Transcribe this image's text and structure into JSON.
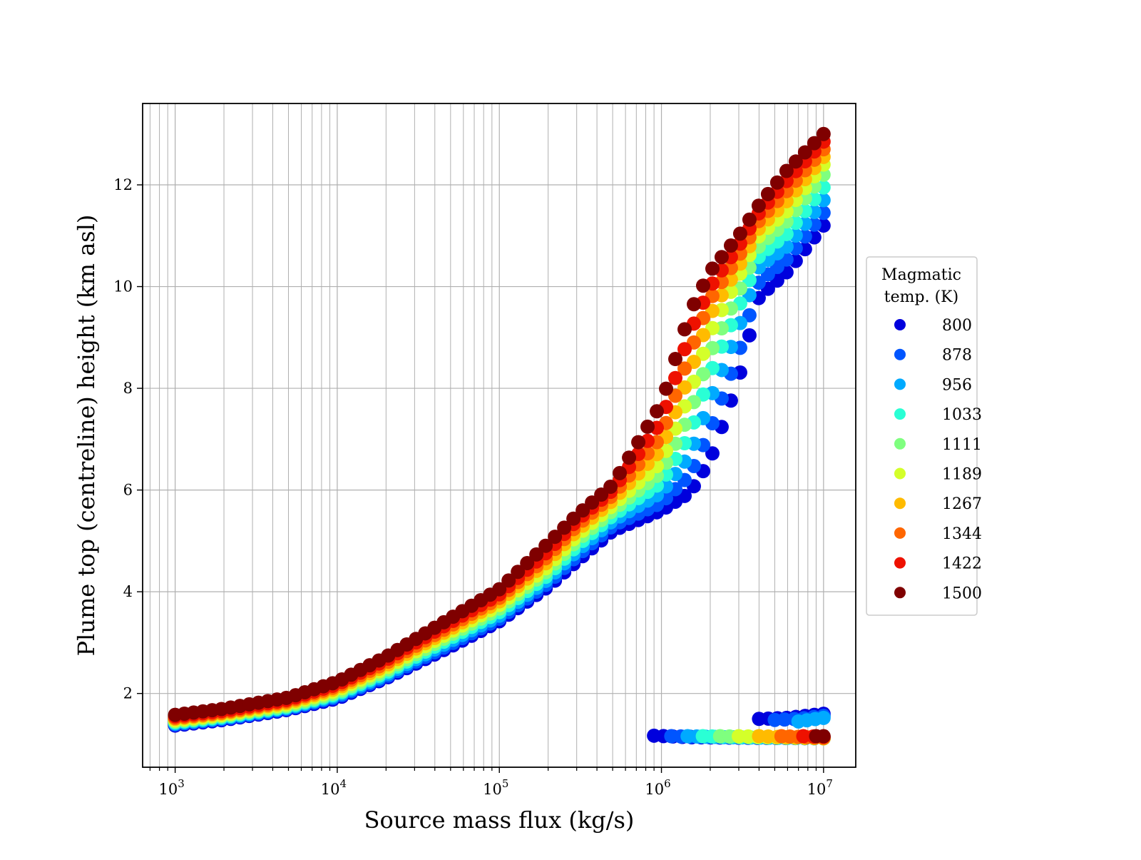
{
  "chart_data": {
    "type": "scatter",
    "x_scale": "log",
    "xlim": [
      630,
      15800000
    ],
    "ylim": [
      0.55,
      13.6
    ],
    "x_ticks": [
      {
        "value": 1000,
        "base": "10",
        "exp": "3"
      },
      {
        "value": 10000,
        "base": "10",
        "exp": "4"
      },
      {
        "value": 100000,
        "base": "10",
        "exp": "5"
      },
      {
        "value": 1000000,
        "base": "10",
        "exp": "6"
      },
      {
        "value": 10000000,
        "base": "10",
        "exp": "7"
      }
    ],
    "y_ticks": [
      2,
      4,
      6,
      8,
      10,
      12
    ],
    "xlabel": "Source mass flux (kg/s)",
    "ylabel": "Plume top (centreline) height (km asl)",
    "grid": true,
    "legend": {
      "title_line1": "Magmatic",
      "title_line2": "temp. (K)",
      "placement": "right, outside plot"
    },
    "x_range_points": [
      1000,
      10000000
    ],
    "points_per_series": 71,
    "series": [
      {
        "name": "800",
        "color": "#0000dd",
        "curve": [
          [
            1000,
            1.37
          ],
          [
            2000,
            1.48
          ],
          [
            5000,
            1.68
          ],
          [
            10000,
            1.9
          ],
          [
            20000,
            2.3
          ],
          [
            50000,
            2.92
          ],
          [
            100000,
            3.42
          ],
          [
            200000,
            4.1
          ],
          [
            300000,
            4.6
          ],
          [
            500000,
            5.2
          ],
          [
            1000000,
            5.6
          ],
          [
            1500000,
            5.95
          ],
          [
            2000000,
            6.6
          ],
          [
            3000000,
            8.2
          ],
          [
            4000000,
            9.8
          ],
          [
            6000000,
            10.3
          ],
          [
            10000000,
            11.2
          ]
        ],
        "lower_branch": [
          [
            900000,
            1.17
          ],
          [
            1500000,
            1.14
          ],
          [
            3000000,
            1.13
          ],
          [
            10000000,
            1.12
          ]
        ],
        "upper_branch": [
          [
            4000000,
            1.5
          ],
          [
            6000000,
            1.52
          ],
          [
            10000000,
            1.6
          ]
        ]
      },
      {
        "name": "878",
        "color": "#0055ff",
        "curve": [
          [
            1000,
            1.39
          ],
          [
            2000,
            1.5
          ],
          [
            5000,
            1.7
          ],
          [
            10000,
            1.93
          ],
          [
            20000,
            2.33
          ],
          [
            50000,
            2.97
          ],
          [
            100000,
            3.47
          ],
          [
            200000,
            4.17
          ],
          [
            300000,
            4.7
          ],
          [
            500000,
            5.3
          ],
          [
            1000000,
            5.75
          ],
          [
            1500000,
            6.3
          ],
          [
            2000000,
            7.2
          ],
          [
            3000000,
            8.7
          ],
          [
            4000000,
            10.1
          ],
          [
            6000000,
            10.55
          ],
          [
            10000000,
            11.45
          ]
        ],
        "lower_branch": [
          [
            1150000,
            1.16
          ],
          [
            2000000,
            1.14
          ],
          [
            10000000,
            1.12
          ]
        ],
        "upper_branch": [
          [
            5000000,
            1.48
          ],
          [
            7000000,
            1.5
          ],
          [
            10000000,
            1.56
          ]
        ]
      },
      {
        "name": "956",
        "color": "#00aaff",
        "curve": [
          [
            1000,
            1.41
          ],
          [
            2000,
            1.52
          ],
          [
            5000,
            1.72
          ],
          [
            10000,
            1.96
          ],
          [
            20000,
            2.37
          ],
          [
            50000,
            3.03
          ],
          [
            100000,
            3.53
          ],
          [
            200000,
            4.25
          ],
          [
            300000,
            4.8
          ],
          [
            500000,
            5.4
          ],
          [
            1000000,
            5.95
          ],
          [
            1500000,
            6.7
          ],
          [
            2000000,
            7.8
          ],
          [
            3000000,
            9.2
          ],
          [
            4000000,
            10.4
          ],
          [
            6000000,
            10.8
          ],
          [
            10000000,
            11.7
          ]
        ],
        "lower_branch": [
          [
            1450000,
            1.16
          ],
          [
            2500000,
            1.14
          ],
          [
            10000000,
            1.12
          ]
        ],
        "upper_branch": [
          [
            7000000,
            1.45
          ],
          [
            10000000,
            1.52
          ]
        ]
      },
      {
        "name": "1033",
        "color": "#2affd5",
        "curve": [
          [
            1000,
            1.43
          ],
          [
            2000,
            1.54
          ],
          [
            5000,
            1.74
          ],
          [
            10000,
            1.99
          ],
          [
            20000,
            2.41
          ],
          [
            50000,
            3.09
          ],
          [
            100000,
            3.6
          ],
          [
            200000,
            4.33
          ],
          [
            300000,
            4.9
          ],
          [
            500000,
            5.5
          ],
          [
            1000000,
            6.15
          ],
          [
            1500000,
            7.1
          ],
          [
            2000000,
            8.3
          ],
          [
            3000000,
            9.6
          ],
          [
            4000000,
            10.6
          ],
          [
            6000000,
            11.05
          ],
          [
            10000000,
            11.95
          ]
        ],
        "lower_branch": [
          [
            1800000,
            1.16
          ],
          [
            3000000,
            1.14
          ],
          [
            10000000,
            1.12
          ]
        ]
      },
      {
        "name": "1111",
        "color": "#7fff7f",
        "curve": [
          [
            1000,
            1.45
          ],
          [
            2000,
            1.56
          ],
          [
            5000,
            1.76
          ],
          [
            10000,
            2.02
          ],
          [
            20000,
            2.45
          ],
          [
            50000,
            3.15
          ],
          [
            100000,
            3.67
          ],
          [
            200000,
            4.42
          ],
          [
            300000,
            5.0
          ],
          [
            500000,
            5.6
          ],
          [
            1000000,
            6.35
          ],
          [
            1500000,
            7.5
          ],
          [
            2000000,
            8.7
          ],
          [
            3000000,
            9.9
          ],
          [
            4000000,
            10.8
          ],
          [
            6000000,
            11.3
          ],
          [
            10000000,
            12.2
          ]
        ],
        "lower_branch": [
          [
            2300000,
            1.16
          ],
          [
            4000000,
            1.14
          ],
          [
            10000000,
            1.12
          ]
        ]
      },
      {
        "name": "1189",
        "color": "#d4ff2a",
        "curve": [
          [
            1000,
            1.47
          ],
          [
            2000,
            1.58
          ],
          [
            5000,
            1.79
          ],
          [
            10000,
            2.06
          ],
          [
            20000,
            2.5
          ],
          [
            50000,
            3.21
          ],
          [
            100000,
            3.74
          ],
          [
            200000,
            4.5
          ],
          [
            300000,
            5.1
          ],
          [
            500000,
            5.7
          ],
          [
            1000000,
            6.55
          ],
          [
            1500000,
            7.9
          ],
          [
            2000000,
            9.1
          ],
          [
            3000000,
            10.2
          ],
          [
            4000000,
            11.0
          ],
          [
            6000000,
            11.5
          ],
          [
            10000000,
            12.4
          ]
        ],
        "lower_branch": [
          [
            3000000,
            1.16
          ],
          [
            5000000,
            1.14
          ],
          [
            10000000,
            1.12
          ]
        ]
      },
      {
        "name": "1267",
        "color": "#ffbb00",
        "curve": [
          [
            1000,
            1.5
          ],
          [
            2000,
            1.61
          ],
          [
            5000,
            1.82
          ],
          [
            10000,
            2.1
          ],
          [
            20000,
            2.55
          ],
          [
            50000,
            3.27
          ],
          [
            100000,
            3.81
          ],
          [
            200000,
            4.6
          ],
          [
            300000,
            5.2
          ],
          [
            500000,
            5.8
          ],
          [
            1000000,
            6.8
          ],
          [
            1500000,
            8.3
          ],
          [
            2000000,
            9.45
          ],
          [
            3000000,
            10.4
          ],
          [
            4000000,
            11.15
          ],
          [
            6000000,
            11.7
          ],
          [
            10000000,
            12.55
          ]
        ],
        "lower_branch": [
          [
            4000000,
            1.16
          ],
          [
            6000000,
            1.14
          ],
          [
            10000000,
            1.12
          ]
        ]
      },
      {
        "name": "1344",
        "color": "#ff6600",
        "curve": [
          [
            1000,
            1.52
          ],
          [
            2000,
            1.63
          ],
          [
            5000,
            1.85
          ],
          [
            10000,
            2.14
          ],
          [
            20000,
            2.6
          ],
          [
            50000,
            3.33
          ],
          [
            100000,
            3.88
          ],
          [
            200000,
            4.7
          ],
          [
            300000,
            5.3
          ],
          [
            500000,
            5.9
          ],
          [
            1000000,
            7.05
          ],
          [
            1500000,
            8.7
          ],
          [
            2000000,
            9.75
          ],
          [
            3000000,
            10.6
          ],
          [
            4000000,
            11.3
          ],
          [
            6000000,
            11.9
          ],
          [
            10000000,
            12.7
          ]
        ],
        "lower_branch": [
          [
            5500000,
            1.16
          ],
          [
            8000000,
            1.14
          ],
          [
            10000000,
            1.13
          ]
        ]
      },
      {
        "name": "1422",
        "color": "#ee1100",
        "curve": [
          [
            1000,
            1.55
          ],
          [
            2000,
            1.66
          ],
          [
            5000,
            1.88
          ],
          [
            10000,
            2.18
          ],
          [
            20000,
            2.66
          ],
          [
            50000,
            3.4
          ],
          [
            100000,
            3.95
          ],
          [
            200000,
            4.8
          ],
          [
            300000,
            5.4
          ],
          [
            500000,
            6.0
          ],
          [
            1000000,
            7.35
          ],
          [
            1500000,
            9.1
          ],
          [
            2000000,
            10.0
          ],
          [
            3000000,
            10.8
          ],
          [
            4000000,
            11.45
          ],
          [
            6000000,
            12.1
          ],
          [
            10000000,
            12.85
          ]
        ],
        "lower_branch": [
          [
            7500000,
            1.16
          ],
          [
            10000000,
            1.15
          ]
        ]
      },
      {
        "name": "1500",
        "color": "#7f0000",
        "curve": [
          [
            1000,
            1.58
          ],
          [
            2000,
            1.7
          ],
          [
            5000,
            1.92
          ],
          [
            10000,
            2.23
          ],
          [
            20000,
            2.72
          ],
          [
            50000,
            3.48
          ],
          [
            100000,
            4.05
          ],
          [
            200000,
            4.95
          ],
          [
            300000,
            5.5
          ],
          [
            500000,
            6.1
          ],
          [
            1000000,
            7.7
          ],
          [
            1500000,
            9.5
          ],
          [
            2000000,
            10.3
          ],
          [
            3000000,
            11.0
          ],
          [
            4000000,
            11.6
          ],
          [
            6000000,
            12.3
          ],
          [
            10000000,
            13.0
          ]
        ],
        "lower_branch": [
          [
            9000000,
            1.16
          ],
          [
            10000000,
            1.16
          ]
        ]
      }
    ]
  }
}
